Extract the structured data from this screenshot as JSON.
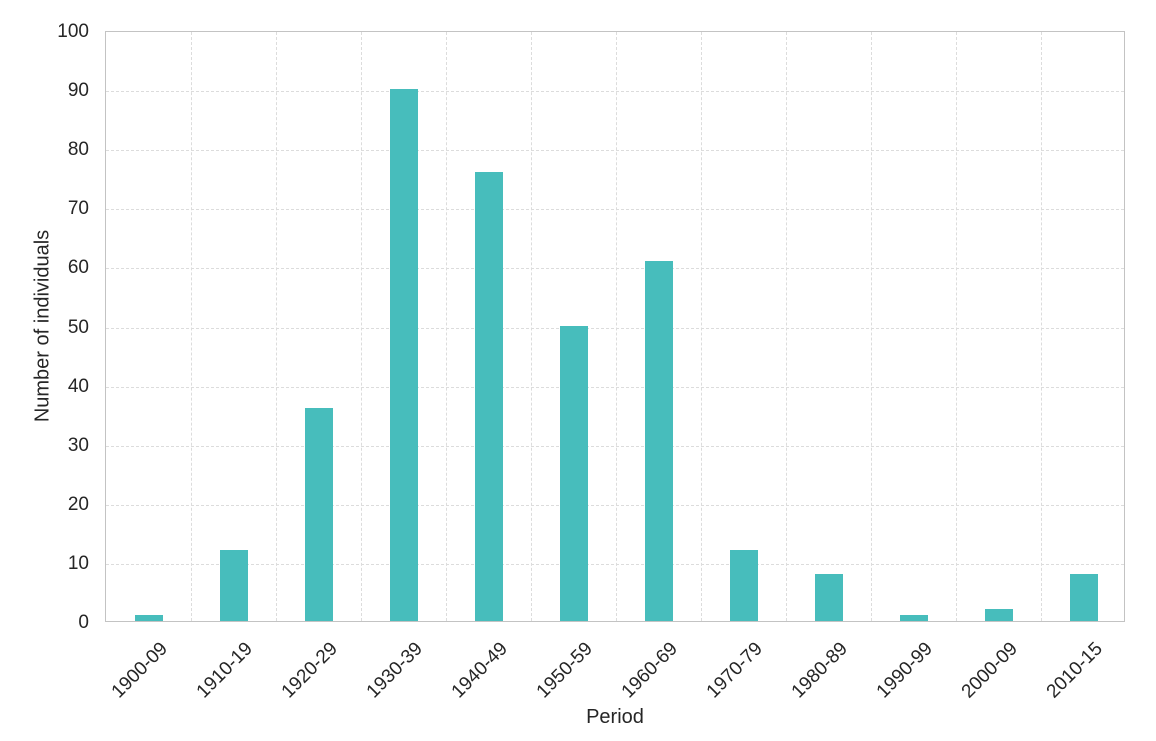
{
  "chart_data": {
    "type": "bar",
    "categories": [
      "1900-09",
      "1910-19",
      "1920-29",
      "1930-39",
      "1940-49",
      "1950-59",
      "1960-69",
      "1970-79",
      "1980-89",
      "1990-99",
      "2000-09",
      "2010-15"
    ],
    "values": [
      1,
      12,
      36,
      90,
      76,
      50,
      61,
      12,
      8,
      1,
      2,
      8
    ],
    "title": "",
    "xlabel": "Period",
    "ylabel": "Number of individuals",
    "ylim": [
      0,
      100
    ],
    "ytick_step": 10,
    "grid": "dashed horizontal and vertical",
    "legend": "none",
    "bar_color": "#47bdbc",
    "grid_color": "#dcdcdc",
    "border_color": "#c3c3c3",
    "text_color": "#262626",
    "background_color": "#ffffff"
  }
}
